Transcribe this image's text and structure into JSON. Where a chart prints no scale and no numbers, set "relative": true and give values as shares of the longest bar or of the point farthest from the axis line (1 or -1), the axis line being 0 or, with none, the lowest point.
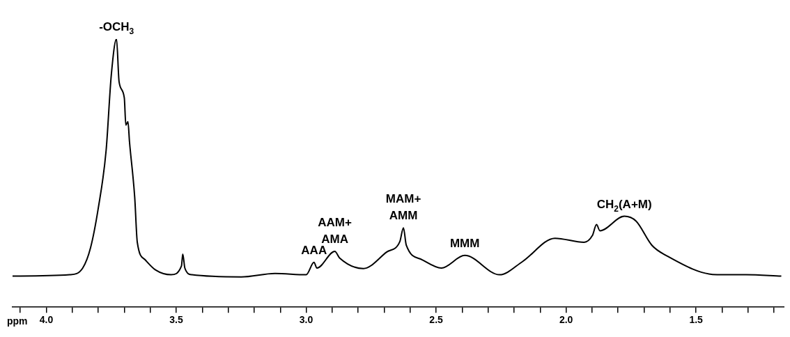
{
  "chart_data": {
    "type": "line",
    "relative": true,
    "xlabel": "ppm",
    "grid": false,
    "legend": false,
    "marker": "none",
    "line_style": "solid",
    "tick_labels": "x",
    "xlim": [
      4.13,
      1.16
    ],
    "xticks": [
      {
        "value": 4.1,
        "label": null
      },
      "4.0",
      {
        "value": 3.9,
        "label": null
      },
      {
        "value": 3.8,
        "label": null
      },
      {
        "value": 3.7,
        "label": null
      },
      {
        "value": 3.6,
        "label": null
      },
      {
        "value": 3.5,
        "label": "3.5"
      },
      {
        "value": 3.4,
        "label": null
      },
      {
        "value": 3.3,
        "label": null
      },
      {
        "value": 3.2,
        "label": null
      },
      {
        "value": 3.1,
        "label": null
      },
      {
        "value": 3.0,
        "label": "3.0"
      },
      {
        "value": 2.9,
        "label": null
      },
      {
        "value": 2.8,
        "label": null
      },
      {
        "value": 2.7,
        "label": null
      },
      {
        "value": 2.6,
        "label": null
      },
      {
        "value": 2.5,
        "label": "2.5"
      },
      {
        "value": 2.4,
        "label": null
      },
      {
        "value": 2.3,
        "label": null
      },
      {
        "value": 2.2,
        "label": null
      },
      {
        "value": 2.1,
        "label": null
      },
      {
        "value": 2.0,
        "label": "2.0"
      },
      {
        "value": 1.9,
        "label": null
      },
      {
        "value": 1.8,
        "label": null
      },
      {
        "value": 1.7,
        "label": null
      },
      {
        "value": 1.6,
        "label": null
      },
      {
        "value": 1.5,
        "label": "1.5"
      },
      {
        "value": 1.4,
        "label": null
      },
      {
        "value": 1.3,
        "label": null
      },
      {
        "value": 1.2,
        "label": null
      }
    ],
    "series": [
      {
        "color": "#000000",
        "x": [
          4.13,
          3.91,
          3.86,
          3.83,
          3.8,
          3.77,
          3.75,
          3.73,
          3.72,
          3.7,
          3.694,
          3.686,
          3.68,
          3.66,
          3.65,
          3.62,
          3.58,
          3.52,
          3.48,
          3.475,
          3.467,
          3.44,
          3.25,
          3.12,
          3.0,
          2.97,
          2.959,
          2.89,
          2.871,
          2.78,
          2.69,
          2.64,
          2.626,
          2.615,
          2.554,
          2.48,
          2.39,
          2.256,
          2.168,
          2.043,
          1.931,
          1.899,
          1.883,
          1.87,
          1.776,
          1.731,
          1.67,
          1.619,
          1.419,
          1.308,
          1.172
        ],
        "values": [
          0.116,
          0.121,
          0.146,
          0.221,
          0.37,
          0.584,
          0.866,
          1.0,
          0.84,
          0.781,
          0.679,
          0.692,
          0.617,
          0.411,
          0.242,
          0.177,
          0.139,
          0.121,
          0.154,
          0.198,
          0.146,
          0.121,
          0.113,
          0.126,
          0.121,
          0.167,
          0.146,
          0.208,
          0.183,
          0.144,
          0.206,
          0.244,
          0.296,
          0.231,
          0.177,
          0.146,
          0.193,
          0.121,
          0.17,
          0.257,
          0.242,
          0.267,
          0.308,
          0.285,
          0.339,
          0.321,
          0.231,
          0.195,
          0.121,
          0.121,
          0.116
        ]
      }
    ],
    "annotations": [
      {
        "text": "-OCH$_{3}$",
        "x": 3.73,
        "y": 1.0
      },
      {
        "text": "AAA",
        "x": 2.97,
        "y": 0.167
      },
      {
        "text": "AAM+ AMA",
        "x": 2.89,
        "y": 0.208
      },
      {
        "text": "MAM+ AMM",
        "x": 2.626,
        "y": 0.296
      },
      {
        "text": "MMM",
        "x": 2.39,
        "y": 0.193
      },
      {
        "text": "CH$_{2}$(A+M)",
        "x": 1.776,
        "y": 0.339
      }
    ]
  }
}
